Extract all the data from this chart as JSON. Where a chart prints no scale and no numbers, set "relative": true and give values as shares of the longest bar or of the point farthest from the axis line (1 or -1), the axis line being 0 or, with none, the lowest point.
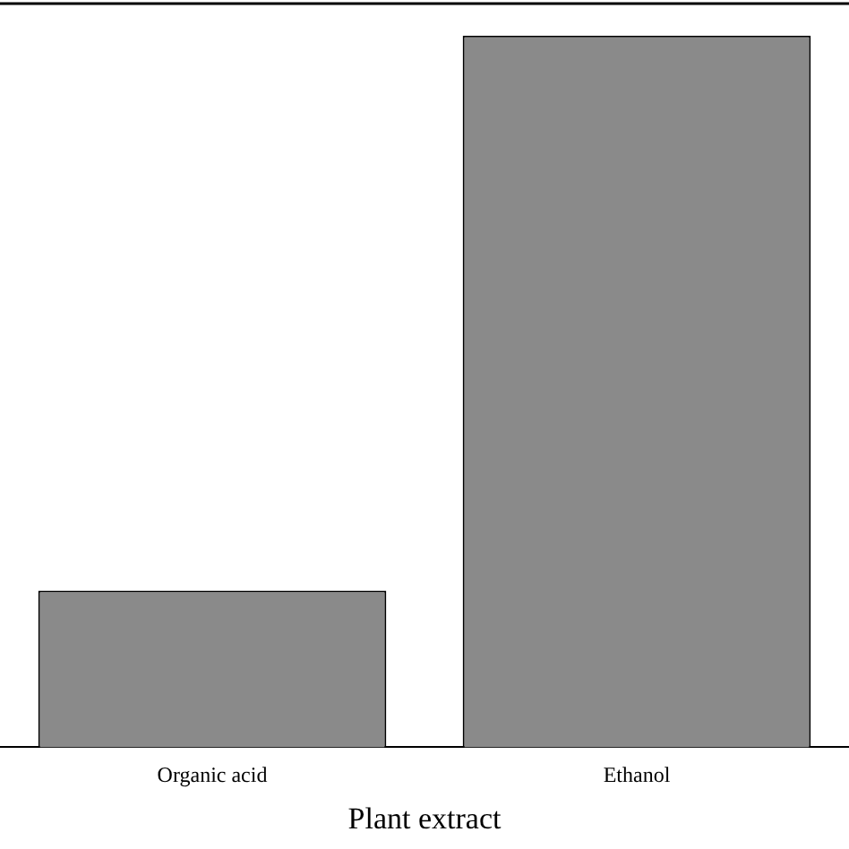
{
  "chart_data": {
    "type": "bar",
    "xlabel": "Plant extract",
    "categories": [
      "Organic acid",
      "Ethanol"
    ],
    "values": [
      0.22,
      1
    ],
    "color": "#8a8a8a",
    "relative": true,
    "grid": false,
    "legend": false
  }
}
